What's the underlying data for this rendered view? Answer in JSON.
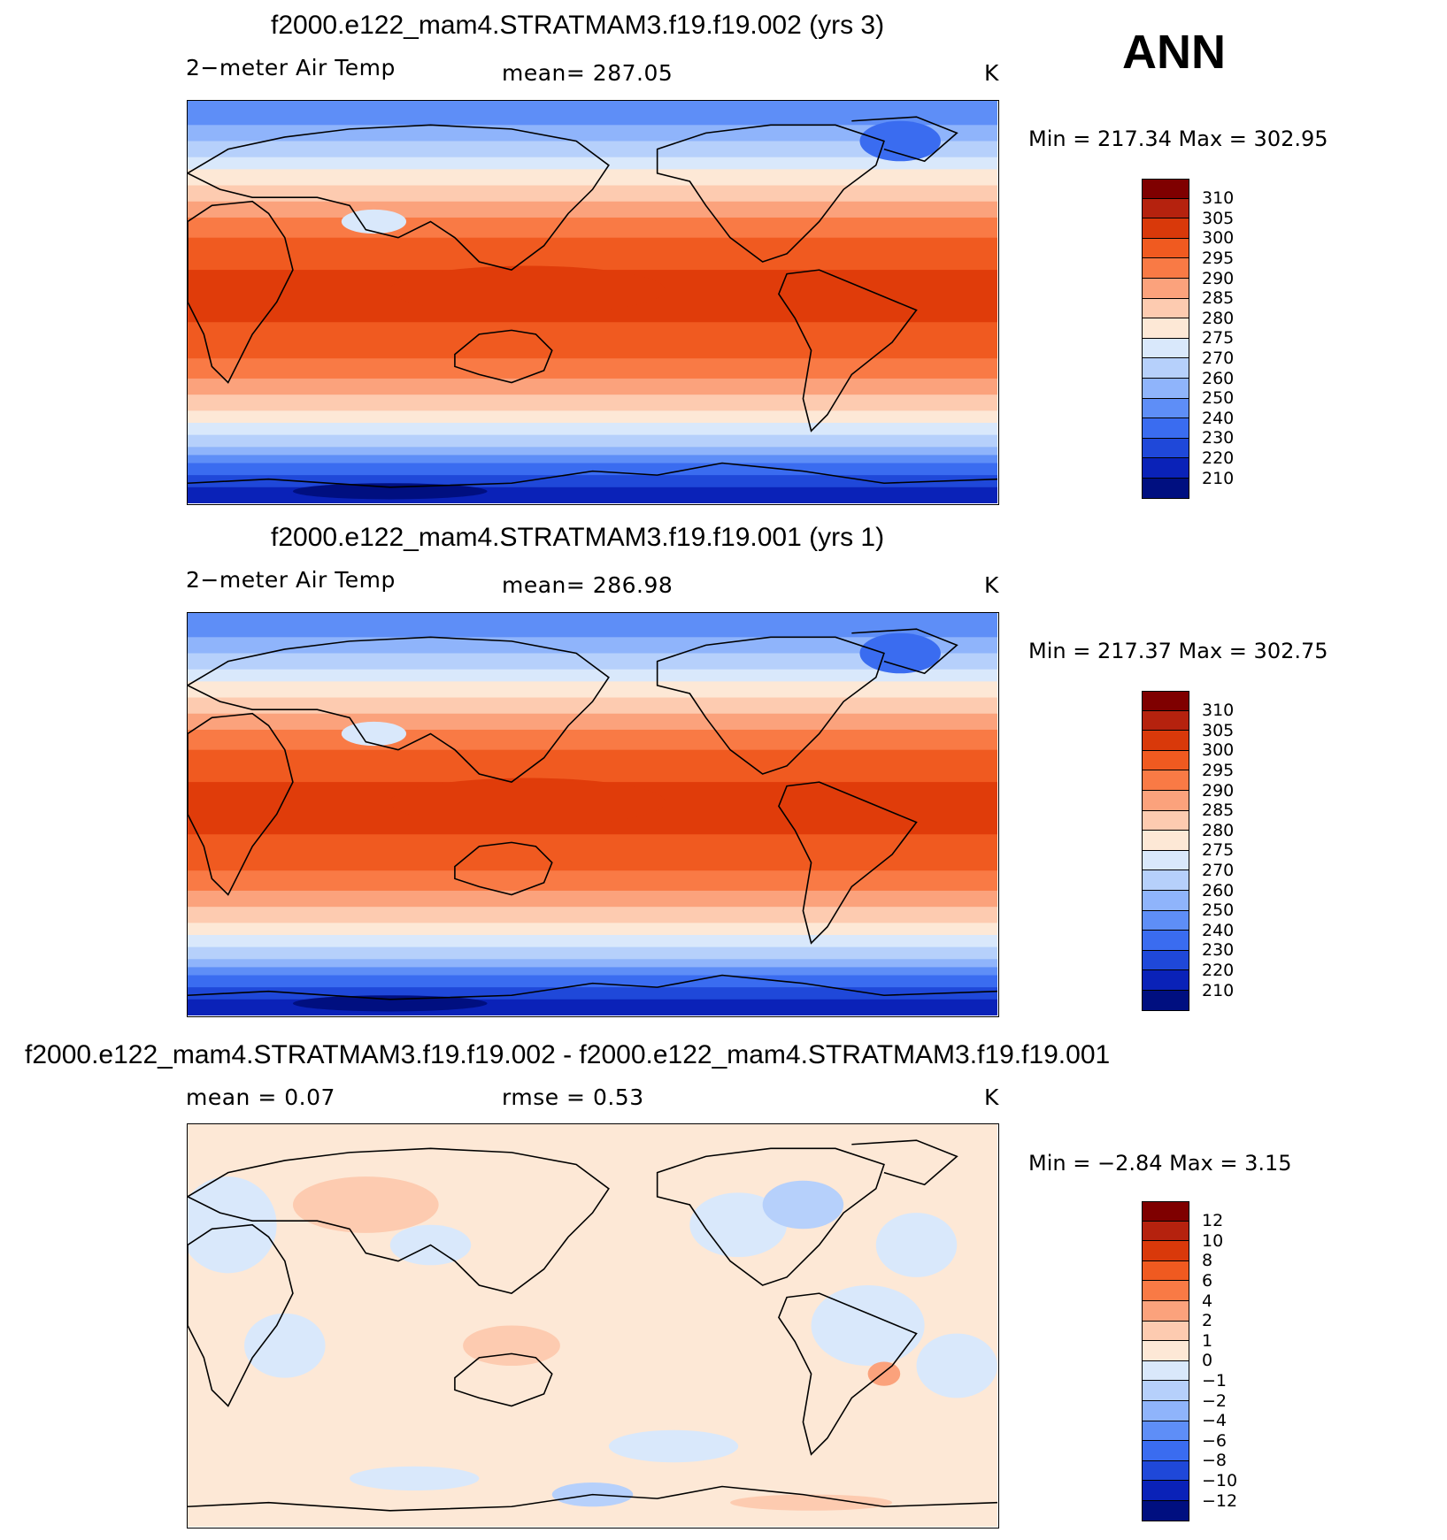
{
  "season_label": "ANN",
  "panels": [
    {
      "title": "f2000.e122_mam4.STRATMAM3.f19.f19.002 (yrs 3)",
      "variable": "2−meter Air Temp",
      "stat": "mean=  287.05",
      "units": "K",
      "minmax": "Min  =  217.34  Max  =  302.95",
      "kind": "abs"
    },
    {
      "title": "f2000.e122_mam4.STRATMAM3.f19.f19.001 (yrs 1)",
      "variable": "2−meter Air Temp",
      "stat": "mean=  286.98",
      "units": "K",
      "minmax": "Min  =  217.37  Max  =  302.75",
      "kind": "abs"
    },
    {
      "title": "f2000.e122_mam4.STRATMAM3.f19.f19.002 - f2000.e122_mam4.STRATMAM3.f19.f19.001",
      "variable": "mean =      0.07",
      "stat": "rmse =      0.53",
      "units": "K",
      "minmax": "Min  =    −2.84  Max  =     3.15",
      "kind": "diff"
    }
  ],
  "colorbars": {
    "abs_labels": [
      "310",
      "305",
      "300",
      "295",
      "290",
      "285",
      "280",
      "275",
      "270",
      "260",
      "250",
      "240",
      "230",
      "220",
      "210"
    ],
    "diff_labels": [
      "12",
      "10",
      "8",
      "6",
      "4",
      "2",
      "1",
      "0",
      "−1",
      "−2",
      "−4",
      "−6",
      "−8",
      "−10",
      "−12"
    ],
    "colors": [
      "#7f0000",
      "#b5220e",
      "#d9390a",
      "#f05a20",
      "#f97a45",
      "#fba27c",
      "#fdcbb0",
      "#fde8d6",
      "#d9e8fb",
      "#b6d0fb",
      "#8fb4fb",
      "#5e8ef7",
      "#3a6cf0",
      "#1f48d9",
      "#0a22b8",
      "#000f80"
    ]
  },
  "colors": {
    "tropical": "#e03c0a",
    "ocean_warm": "#f26a2a",
    "antarctic": "#0a2fc8"
  }
}
